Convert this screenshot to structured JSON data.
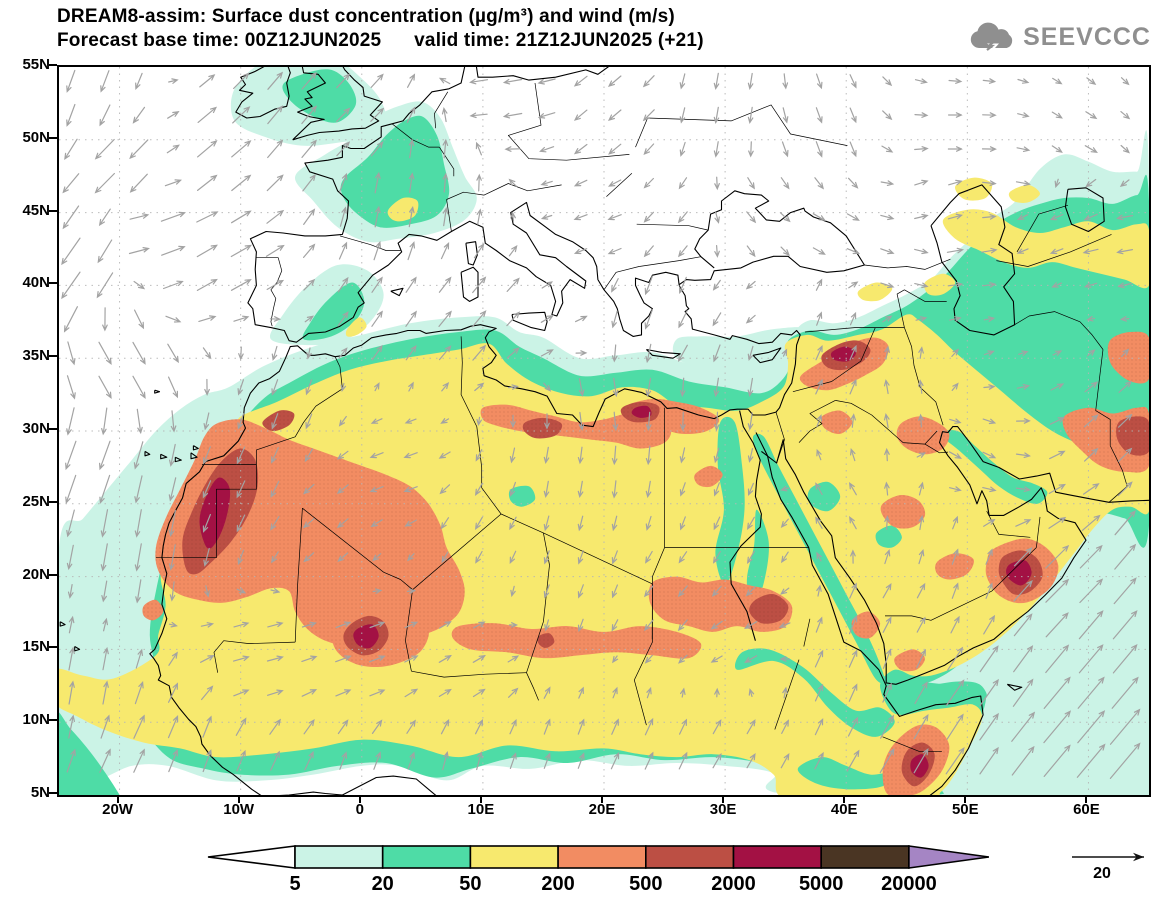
{
  "header": {
    "title_line1": "DREAM8-assim: Surface dust concentration (µg/m³) and wind (m/s)",
    "title_line2": "Forecast base time: 00Z12JUN2025      valid time: 21Z12JUN2025 (+21)",
    "logo_text": "SEEVCCC"
  },
  "map": {
    "lon_min": -25,
    "lon_max": 65,
    "lat_min": 5,
    "lat_max": 55,
    "lon_ticks": [
      {
        "lon": -20,
        "label": "20W"
      },
      {
        "lon": -10,
        "label": "10W"
      },
      {
        "lon": 0,
        "label": "0"
      },
      {
        "lon": 10,
        "label": "10E"
      },
      {
        "lon": 20,
        "label": "20E"
      },
      {
        "lon": 30,
        "label": "30E"
      },
      {
        "lon": 40,
        "label": "40E"
      },
      {
        "lon": 50,
        "label": "50E"
      },
      {
        "lon": 60,
        "label": "60E"
      }
    ],
    "lat_ticks": [
      {
        "lat": 55,
        "label": "55N"
      },
      {
        "lat": 50,
        "label": "50N"
      },
      {
        "lat": 45,
        "label": "45N"
      },
      {
        "lat": 40,
        "label": "40N"
      },
      {
        "lat": 35,
        "label": "35N"
      },
      {
        "lat": 30,
        "label": "30N"
      },
      {
        "lat": 25,
        "label": "25N"
      },
      {
        "lat": 20,
        "label": "20N"
      },
      {
        "lat": 15,
        "label": "15N"
      },
      {
        "lat": 10,
        "label": "10N"
      },
      {
        "lat": 5,
        "label": "5N"
      }
    ],
    "wind_color": "#a3a3a3",
    "coast_color": "#000000",
    "grid_color": "#b5b5b5",
    "wind_samples": [
      {
        "lon": -24,
        "lat": 53,
        "dir": 200,
        "spd": 8
      },
      {
        "lon": -20,
        "lat": 48,
        "dir": 225,
        "spd": 10
      },
      {
        "lon": -24,
        "lat": 41,
        "dir": 215,
        "spd": 12
      },
      {
        "lon": -20,
        "lat": 34,
        "dir": 150,
        "spd": 9
      },
      {
        "lon": -22,
        "lat": 28,
        "dir": 200,
        "spd": 11
      },
      {
        "lon": -19,
        "lat": 23,
        "dir": 190,
        "spd": 10
      },
      {
        "lon": -23,
        "lat": 12,
        "dir": 10,
        "spd": 8
      },
      {
        "lon": -19,
        "lat": 8,
        "dir": 25,
        "spd": 9
      },
      {
        "lon": -13,
        "lat": 7,
        "dir": 20,
        "spd": 8
      },
      {
        "lon": -7,
        "lat": 6,
        "dir": 25,
        "spd": 7
      },
      {
        "lon": 0,
        "lat": 6,
        "dir": 20,
        "spd": 6
      },
      {
        "lon": 8,
        "lat": 6,
        "dir": 15,
        "spd": 6
      },
      {
        "lon": 16,
        "lat": 7,
        "dir": 20,
        "spd": 5
      },
      {
        "lon": 24,
        "lat": 7,
        "dir": 25,
        "spd": 6
      },
      {
        "lon": 31,
        "lat": 8,
        "dir": 30,
        "spd": 5
      },
      {
        "lon": -8,
        "lat": 14,
        "dir": 75,
        "spd": 5
      },
      {
        "lon": 0,
        "lat": 14,
        "dir": 70,
        "spd": 5
      },
      {
        "lon": 8,
        "lat": 14,
        "dir": 60,
        "spd": 4
      },
      {
        "lon": -10,
        "lat": 26,
        "dir": 205,
        "spd": 6
      },
      {
        "lon": -3,
        "lat": 24,
        "dir": 230,
        "spd": 4
      },
      {
        "lon": 3,
        "lat": 27,
        "dir": 250,
        "spd": 4
      },
      {
        "lon": 10,
        "lat": 24,
        "dir": 210,
        "spd": 4
      },
      {
        "lon": 16,
        "lat": 27,
        "dir": 190,
        "spd": 5
      },
      {
        "lon": 22,
        "lat": 29,
        "dir": 185,
        "spd": 6
      },
      {
        "lon": 28,
        "lat": 26,
        "dir": 200,
        "spd": 4
      },
      {
        "lon": 32,
        "lat": 22,
        "dir": 210,
        "spd": 4
      },
      {
        "lon": 20,
        "lat": 32,
        "dir": 170,
        "spd": 6
      },
      {
        "lon": 28,
        "lat": 32,
        "dir": 180,
        "spd": 6
      },
      {
        "lon": -7,
        "lat": 32,
        "dir": 200,
        "spd": 5
      },
      {
        "lon": 2,
        "lat": 38,
        "dir": 35,
        "spd": 6
      },
      {
        "lon": 10,
        "lat": 38,
        "dir": 40,
        "spd": 7
      },
      {
        "lon": 16,
        "lat": 37,
        "dir": 60,
        "spd": 4
      },
      {
        "lon": 24,
        "lat": 34,
        "dir": 190,
        "spd": 6
      },
      {
        "lon": 30,
        "lat": 33,
        "dir": 190,
        "spd": 6
      },
      {
        "lon": 24,
        "lat": 38,
        "dir": 200,
        "spd": 7
      },
      {
        "lon": 27,
        "lat": 36,
        "dir": 210,
        "spd": 6
      },
      {
        "lon": 20,
        "lat": 44,
        "dir": 250,
        "spd": 4
      },
      {
        "lon": 26,
        "lat": 44,
        "dir": 220,
        "spd": 4
      },
      {
        "lon": 2,
        "lat": 46,
        "dir": 10,
        "spd": 7
      },
      {
        "lon": 6,
        "lat": 48,
        "dir": 5,
        "spd": 6
      },
      {
        "lon": 0,
        "lat": 51,
        "dir": 45,
        "spd": 6
      },
      {
        "lon": -6,
        "lat": 51,
        "dir": 40,
        "spd": 8
      },
      {
        "lon": -12,
        "lat": 49,
        "dir": 50,
        "spd": 9
      },
      {
        "lon": -16,
        "lat": 44,
        "dir": 70,
        "spd": 9
      },
      {
        "lon": -12,
        "lat": 42,
        "dir": 60,
        "spd": 8
      },
      {
        "lon": 12,
        "lat": 53,
        "dir": 260,
        "spd": 6
      },
      {
        "lon": 20,
        "lat": 52,
        "dir": 230,
        "spd": 5
      },
      {
        "lon": 30,
        "lat": 52,
        "dir": 190,
        "spd": 5
      },
      {
        "lon": 38,
        "lat": 50,
        "dir": 160,
        "spd": 5
      },
      {
        "lon": 32,
        "lat": 44,
        "dir": 140,
        "spd": 4
      },
      {
        "lon": 38,
        "lat": 44,
        "dir": 120,
        "spd": 4
      },
      {
        "lon": 32,
        "lat": 39,
        "dir": 230,
        "spd": 3
      },
      {
        "lon": 38,
        "lat": 38,
        "dir": 20,
        "spd": 4
      },
      {
        "lon": 44,
        "lat": 42,
        "dir": 110,
        "spd": 4
      },
      {
        "lon": 50,
        "lat": 43,
        "dir": 80,
        "spd": 5
      },
      {
        "lon": 56,
        "lat": 44,
        "dir": 250,
        "spd": 4
      },
      {
        "lon": 62,
        "lat": 44,
        "dir": 260,
        "spd": 5
      },
      {
        "lon": 60,
        "lat": 49,
        "dir": 120,
        "spd": 4
      },
      {
        "lon": 50,
        "lat": 49,
        "dir": 90,
        "spd": 4
      },
      {
        "lon": 39,
        "lat": 34,
        "dir": 25,
        "spd": 5
      },
      {
        "lon": 44,
        "lat": 32,
        "dir": 350,
        "spd": 4
      },
      {
        "lon": 40,
        "lat": 25,
        "dir": 330,
        "spd": 4
      },
      {
        "lon": 46,
        "lat": 24,
        "dir": 10,
        "spd": 4
      },
      {
        "lon": 50,
        "lat": 20,
        "dir": 20,
        "spd": 5
      },
      {
        "lon": 44,
        "lat": 18,
        "dir": 30,
        "spd": 5
      },
      {
        "lon": 40,
        "lat": 14,
        "dir": 25,
        "spd": 6
      },
      {
        "lon": 50,
        "lat": 28,
        "dir": 120,
        "spd": 4
      },
      {
        "lon": 54,
        "lat": 27,
        "dir": 100,
        "spd": 4
      },
      {
        "lon": 58,
        "lat": 26,
        "dir": 60,
        "spd": 6
      },
      {
        "lon": 62,
        "lat": 28,
        "dir": 45,
        "spd": 6
      },
      {
        "lon": 52,
        "lat": 12,
        "dir": 35,
        "spd": 12
      },
      {
        "lon": 58,
        "lat": 10,
        "dir": 40,
        "spd": 16
      },
      {
        "lon": 64,
        "lat": 8,
        "dir": 40,
        "spd": 18
      },
      {
        "lon": 62,
        "lat": 16,
        "dir": 40,
        "spd": 14
      },
      {
        "lon": 58,
        "lat": 20,
        "dir": 45,
        "spd": 12
      },
      {
        "lon": 64,
        "lat": 22,
        "dir": 40,
        "spd": 12
      },
      {
        "lon": 46,
        "lat": 8,
        "dir": 30,
        "spd": 10
      },
      {
        "lon": 50,
        "lat": 6,
        "dir": 35,
        "spd": 12
      },
      {
        "lon": 42,
        "lat": 15,
        "dir": 20,
        "spd": 7
      },
      {
        "lon": 54,
        "lat": 47,
        "dir": 100,
        "spd": 4
      },
      {
        "lon": 60,
        "lat": 46,
        "dir": 240,
        "spd": 4
      },
      {
        "lon": 48,
        "lat": 46,
        "dir": 70,
        "spd": 4
      },
      {
        "lon": 18,
        "lat": 20,
        "dir": 200,
        "spd": 4
      },
      {
        "lon": 26,
        "lat": 18,
        "dir": 220,
        "spd": 4
      },
      {
        "lon": 32,
        "lat": 16,
        "dir": 240,
        "spd": 4
      }
    ]
  },
  "colorbar": {
    "levels": [
      "5",
      "20",
      "50",
      "200",
      "500",
      "2000",
      "5000",
      "20000"
    ],
    "colors": {
      "below": "#ffffff",
      "c1": "#cbf3e6",
      "c2": "#4edca6",
      "c3": "#f7e96e",
      "c4": "#f28c62",
      "c5": "#bc4f44",
      "c6": "#a31144",
      "c7": "#4a3523",
      "above": "#a585c4"
    }
  },
  "wind_legend": {
    "label": "20"
  },
  "chart_data": {
    "type": "map",
    "title": "DREAM8-assim: Surface dust concentration (µg/m³) and wind (m/s)",
    "forecast_base_time": "00Z12JUN2025",
    "valid_time": "21Z12JUN2025",
    "forecast_offset_hours": "+21",
    "lon_range_deg": [
      -25,
      65
    ],
    "lat_range_deg": [
      5,
      55
    ],
    "dust_levels_ug_m3": [
      5,
      20,
      50,
      200,
      500,
      2000,
      5000,
      20000
    ],
    "wind_reference_ms": 20,
    "legend_position": "bottom",
    "grid": "dotted 10deg lon x 5deg lat"
  }
}
